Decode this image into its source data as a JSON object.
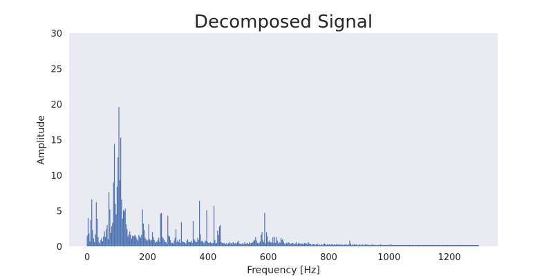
{
  "chart_data": {
    "type": "bar",
    "title": "Decomposed Signal",
    "xlabel": "Frequency [Hz]",
    "ylabel": "Amplitude",
    "xlim": [
      -60,
      1360
    ],
    "ylim": [
      0,
      30
    ],
    "x_ticks": [
      0,
      200,
      400,
      600,
      800,
      1000,
      1200
    ],
    "y_ticks": [
      0,
      5,
      10,
      15,
      20,
      25,
      30
    ],
    "grid": false,
    "colors": {
      "plot_background": "#EAEAF2",
      "bar": "#4C72B0"
    },
    "x": [
      0,
      3,
      6,
      9,
      12,
      15,
      18,
      21,
      24,
      27,
      30,
      33,
      36,
      39,
      42,
      45,
      48,
      51,
      54,
      57,
      60,
      63,
      66,
      69,
      72,
      75,
      78,
      81,
      84,
      87,
      90,
      93,
      96,
      99,
      102,
      105,
      108,
      111,
      114,
      117,
      120,
      123,
      126,
      129,
      132,
      135,
      138,
      141,
      144,
      147,
      150,
      153,
      156,
      159,
      162,
      165,
      168,
      171,
      174,
      177,
      180,
      183,
      186,
      189,
      192,
      195,
      198,
      201,
      204,
      207,
      210,
      213,
      216,
      219,
      222,
      225,
      228,
      231,
      234,
      237,
      240,
      243,
      246,
      249,
      252,
      255,
      258,
      261,
      264,
      267,
      270,
      273,
      276,
      279,
      282,
      285,
      288,
      291,
      294,
      297,
      300,
      303,
      306,
      309,
      312,
      315,
      318,
      321,
      324,
      327,
      330,
      333,
      336,
      339,
      342,
      345,
      348,
      351,
      354,
      357,
      360,
      363,
      366,
      369,
      372,
      375,
      378,
      381,
      384,
      387,
      390,
      393,
      396,
      399,
      402,
      405,
      408,
      411,
      414,
      417,
      420,
      423,
      426,
      429,
      432,
      435,
      438,
      441,
      444,
      447,
      450,
      453,
      456,
      459,
      462,
      465,
      468,
      471,
      474,
      477,
      480,
      483,
      486,
      489,
      492,
      495,
      498,
      501,
      504,
      507,
      510,
      513,
      516,
      519,
      522,
      525,
      528,
      531,
      534,
      537,
      540,
      543,
      546,
      549,
      552,
      555,
      558,
      561,
      564,
      567,
      570,
      573,
      576,
      579,
      582,
      585,
      588,
      591,
      594,
      597,
      600,
      603,
      606,
      609,
      612,
      615,
      618,
      621,
      624,
      627,
      630,
      633,
      636,
      639,
      642,
      645,
      648,
      651,
      654,
      657,
      660,
      663,
      666,
      669,
      672,
      675,
      678,
      681,
      684,
      687,
      690,
      693,
      696,
      699,
      702,
      705,
      708,
      711,
      714,
      717,
      720,
      723,
      726,
      729,
      732,
      735,
      738,
      741,
      744,
      747,
      750,
      753,
      756,
      759,
      762,
      765,
      768,
      771,
      774,
      777,
      780,
      783,
      786,
      789,
      792,
      795,
      798,
      801,
      804,
      807,
      810,
      813,
      816,
      819,
      822,
      825,
      828,
      831,
      834,
      837,
      840,
      843,
      846,
      849,
      852,
      855,
      858,
      861,
      864,
      867,
      870,
      873,
      876,
      879,
      882,
      885,
      888,
      891,
      894,
      897,
      900,
      903,
      906,
      909,
      912,
      915,
      918,
      921,
      924,
      927,
      930,
      933,
      936,
      939,
      942,
      945,
      948,
      951,
      954,
      957,
      960,
      963,
      966,
      969,
      972,
      975,
      978,
      981,
      984,
      987,
      990,
      993,
      996,
      999,
      1002,
      1005,
      1008,
      1011,
      1014,
      1017,
      1020,
      1023,
      1026,
      1029,
      1032,
      1035,
      1038,
      1041,
      1044,
      1047,
      1050,
      1053,
      1056,
      1059,
      1062,
      1065,
      1068,
      1071,
      1074,
      1077,
      1080,
      1083,
      1086,
      1089,
      1092,
      1095,
      1098,
      1101,
      1104,
      1107,
      1110,
      1113,
      1116,
      1119,
      1122,
      1125,
      1128,
      1131,
      1134,
      1137,
      1140,
      1143,
      1146,
      1149,
      1152,
      1155,
      1158,
      1161,
      1164,
      1167,
      1170,
      1173,
      1176,
      1179,
      1182,
      1185,
      1188,
      1191,
      1194,
      1197,
      1200,
      1203,
      1206,
      1209,
      1212,
      1215,
      1218,
      1221,
      1224,
      1227,
      1230,
      1233,
      1236,
      1239,
      1242,
      1245,
      1248,
      1251,
      1254,
      1257,
      1260,
      1263,
      1266,
      1269,
      1272,
      1275,
      1278,
      1281,
      1284,
      1287,
      1290,
      1293,
      1296
    ],
    "values": [
      1.5,
      4.0,
      1.8,
      0.7,
      3.7,
      6.6,
      2.3,
      1.1,
      0.6,
      1.7,
      6.2,
      3.9,
      1.3,
      0.6,
      0.4,
      0.9,
      1.2,
      0.7,
      1.4,
      2.1,
      1.3,
      2.4,
      3.0,
      1.0,
      7.6,
      5.2,
      1.9,
      2.8,
      3.3,
      9.0,
      14.4,
      6.0,
      4.5,
      8.4,
      12.5,
      19.6,
      9.3,
      15.3,
      6.6,
      3.9,
      5.1,
      4.9,
      5.3,
      3.1,
      2.4,
      1.4,
      1.7,
      2.1,
      1.6,
      1.1,
      1.5,
      1.4,
      1.5,
      1.6,
      1.3,
      1.0,
      0.8,
      1.6,
      1.4,
      1.2,
      1.6,
      5.2,
      3.2,
      2.3,
      1.2,
      1.0,
      0.8,
      0.9,
      3.1,
      1.0,
      0.8,
      0.9,
      2.0,
      1.3,
      0.9,
      0.5,
      0.7,
      0.6,
      0.9,
      1.2,
      0.6,
      4.6,
      4.7,
      1.3,
      1.1,
      0.9,
      0.6,
      0.6,
      0.4,
      4.3,
      1.5,
      1.4,
      0.9,
      0.5,
      0.5,
      0.4,
      0.8,
      1.2,
      2.4,
      0.6,
      0.9,
      0.6,
      1.0,
      0.5,
      3.4,
      0.7,
      0.6,
      0.6,
      0.5,
      0.4,
      0.8,
      1.0,
      0.6,
      0.6,
      0.6,
      0.8,
      0.5,
      3.6,
      1.0,
      0.8,
      0.6,
      0.6,
      1.2,
      0.9,
      6.4,
      1.7,
      0.7,
      0.8,
      0.6,
      0.4,
      0.7,
      0.8,
      5.1,
      0.6,
      0.5,
      0.5,
      0.6,
      0.5,
      0.4,
      0.5,
      5.7,
      0.9,
      0.4,
      0.5,
      2.2,
      1.6,
      2.8,
      3.0,
      0.6,
      0.5,
      0.4,
      0.5,
      0.4,
      0.3,
      0.5,
      0.3,
      0.4,
      0.6,
      0.4,
      0.5,
      0.3,
      0.6,
      0.5,
      0.4,
      0.5,
      0.4,
      0.6,
      0.8,
      0.4,
      0.3,
      0.4,
      0.3,
      0.5,
      0.3,
      0.6,
      0.3,
      0.4,
      0.5,
      0.3,
      0.6,
      0.4,
      0.5,
      0.5,
      0.6,
      0.8,
      0.9,
      1.3,
      0.8,
      0.5,
      0.4,
      0.5,
      0.7,
      1.6,
      2.0,
      0.9,
      0.6,
      4.7,
      0.4,
      2.0,
      1.4,
      0.6,
      0.8,
      0.5,
      0.6,
      0.5,
      1.3,
      0.5,
      1.3,
      0.5,
      1.3,
      0.8,
      0.4,
      0.6,
      0.5,
      1.2,
      0.9,
      1.0,
      0.6,
      0.4,
      0.3,
      0.5,
      0.4,
      0.6,
      0.5,
      0.3,
      0.4,
      0.4,
      0.5,
      0.4,
      0.3,
      0.4,
      0.6,
      0.3,
      0.4,
      0.5,
      0.4,
      0.3,
      0.4,
      0.4,
      0.3,
      0.5,
      0.4,
      0.4,
      0.3,
      0.6,
      0.4,
      0.4,
      0.3,
      0.2,
      0.3,
      0.3,
      0.3,
      0.2,
      0.3,
      0.4,
      0.2,
      0.3,
      0.2,
      0.2,
      0.3,
      0.2,
      0.3,
      0.4,
      0.3,
      0.2,
      0.3,
      0.2,
      0.3,
      0.3,
      0.2,
      0.3,
      0.3,
      0.2,
      0.3,
      0.2,
      0.3,
      0.2,
      0.3,
      0.2,
      0.3,
      0.2,
      0.3,
      0.2,
      0.2,
      0.3,
      0.2,
      0.3,
      0.2,
      0.2,
      0.3,
      0.8,
      0.4,
      0.2,
      0.3,
      0.2,
      0.3,
      0.2,
      0.3,
      0.2,
      0.2,
      0.2,
      0.3,
      0.2,
      0.2,
      0.3,
      0.2,
      0.2,
      0.3,
      0.2,
      0.3,
      0.2,
      0.2,
      0.2,
      0.2,
      0.2,
      0.3,
      0.2,
      0.2,
      0.2,
      0.2,
      0.2,
      0.2,
      0.2,
      0.2,
      0.3,
      0.2,
      0.2,
      0.2,
      0.2,
      0.2,
      0.2,
      0.2,
      0.2,
      0.2,
      0.2,
      0.3,
      0.2,
      0.2,
      0.2,
      0.2,
      0.2,
      0.2,
      0.2,
      0.2,
      0.2,
      0.2,
      0.2,
      0.2,
      0.2,
      0.2,
      0.2,
      0.2,
      0.2,
      0.2,
      0.2,
      0.2,
      0.2,
      0.2,
      0.2,
      0.2,
      0.2,
      0.2,
      0.2,
      0.2,
      0.2,
      0.2,
      0.2,
      0.2,
      0.2,
      0.2,
      0.2,
      0.2,
      0.2,
      0.2,
      0.2,
      0.2,
      0.2,
      0.2,
      0.2,
      0.2,
      0.2,
      0.2,
      0.2,
      0.2,
      0.2,
      0.2,
      0.2,
      0.2,
      0.2,
      0.2,
      0.2,
      0.2,
      0.2,
      0.2,
      0.2,
      0.2,
      0.2,
      0.2,
      0.2,
      0.2,
      0.2,
      0.2,
      0.2,
      0.2,
      0.2,
      0.2,
      0.2,
      0.2,
      0.2,
      0.2,
      0.2,
      0.2,
      0.2,
      0.2,
      0.2,
      0.2,
      0.2,
      0.2,
      0.2,
      0.2,
      0.2,
      0.2,
      0.2,
      0.2,
      0.2,
      0.2,
      0.2,
      0.2,
      0.2,
      0.2,
      0.2,
      0.2,
      0.2
    ]
  }
}
